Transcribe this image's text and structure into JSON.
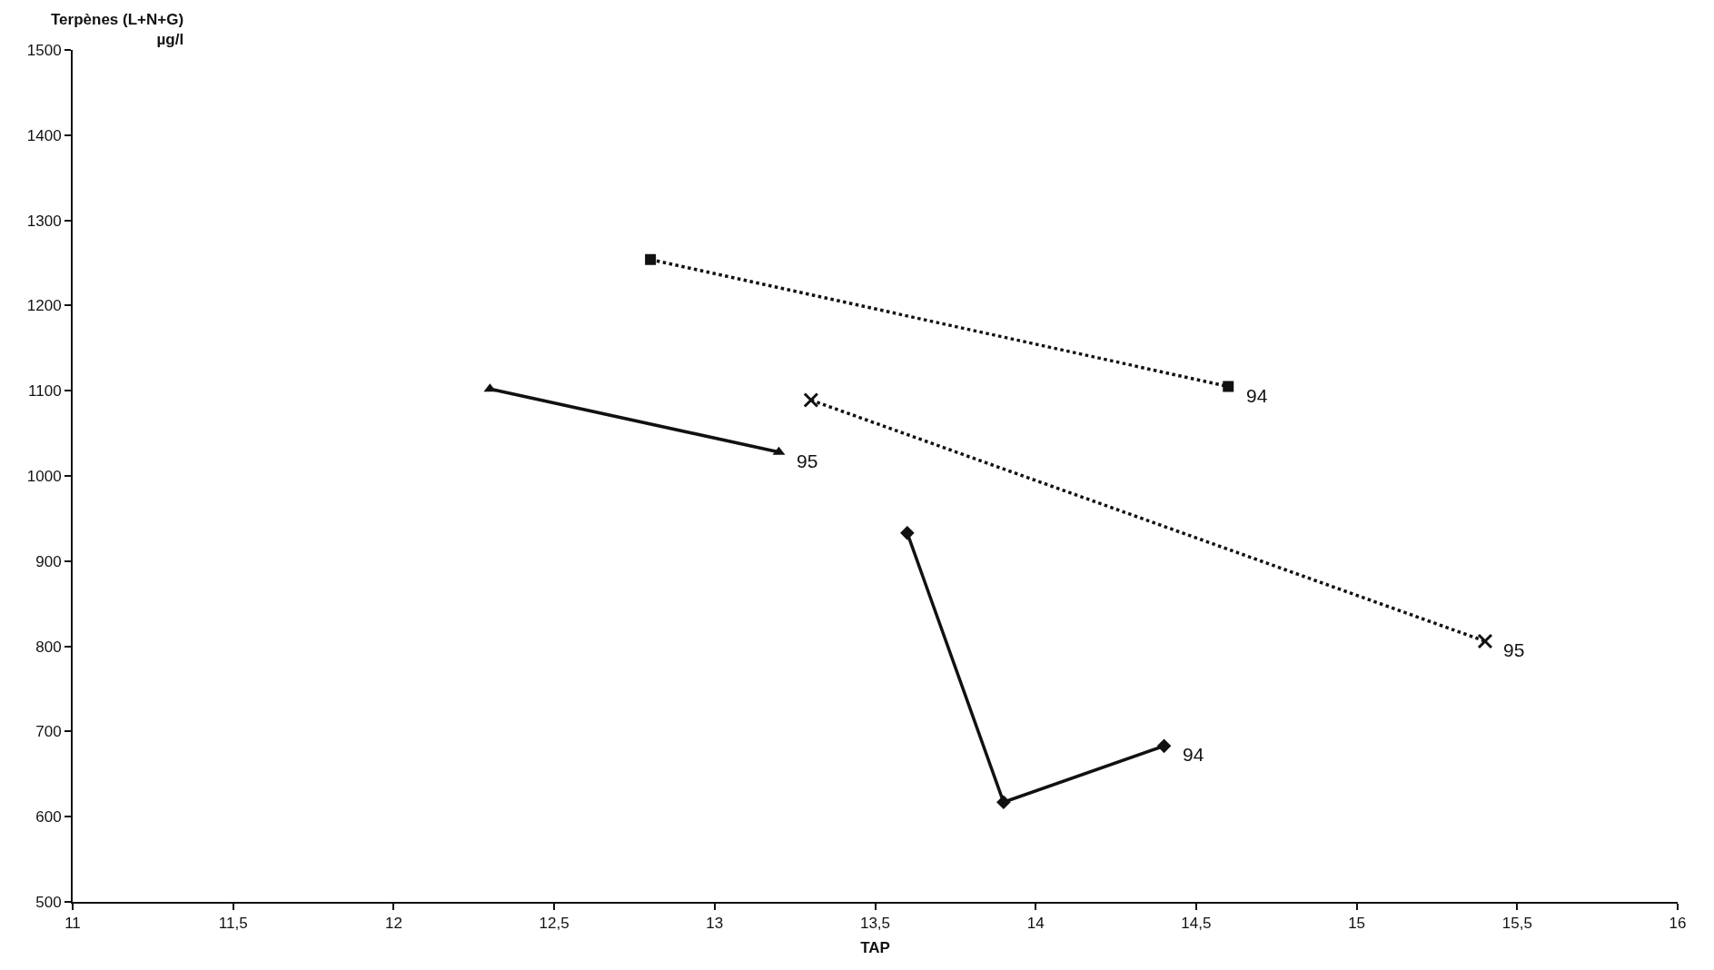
{
  "chart_data": {
    "type": "line",
    "xlabel": "TAP",
    "ylabel": "Terpènes (L+N+G)\nµg/l",
    "xlim": [
      11,
      16
    ],
    "xticks": [
      11,
      {
        "value": 11.5,
        "label": "11,5"
      },
      12,
      {
        "value": 12.5,
        "label": "12,5"
      },
      13,
      {
        "value": 13.5,
        "label": "13,5"
      },
      14,
      {
        "value": 14.5,
        "label": "14,5"
      },
      15,
      {
        "value": 15.5,
        "label": "15,5"
      },
      16
    ],
    "ylim": [
      500,
      1500
    ],
    "yticks": [
      500,
      600,
      700,
      800,
      900,
      1000,
      1100,
      1200,
      1300,
      1400,
      1500
    ],
    "grid": false,
    "series": [
      {
        "color": "#111111",
        "marker": "triangle",
        "line_style": "solid",
        "x": [
          12.3,
          13.2
        ],
        "values": [
          1102,
          1028
        ]
      },
      {
        "color": "#111111",
        "marker": "square",
        "line_style": "dotted",
        "x": [
          12.8,
          14.6
        ],
        "values": [
          1254,
          1105
        ]
      },
      {
        "color": "#111111",
        "marker": "cross",
        "line_style": "dotted",
        "x": [
          13.3,
          15.4
        ],
        "values": [
          1089,
          806
        ]
      },
      {
        "color": "#111111",
        "marker": "diamond",
        "line_style": "solid",
        "x": [
          13.6,
          13.9,
          14.4
        ],
        "values": [
          933,
          617,
          683
        ]
      }
    ],
    "annotations": [
      {
        "text": "95",
        "x": 13.2,
        "y": 1028
      },
      {
        "text": "94",
        "x": 14.6,
        "y": 1105
      },
      {
        "text": "95",
        "x": 15.4,
        "y": 806
      },
      {
        "text": "94",
        "x": 14.4,
        "y": 683
      }
    ]
  }
}
